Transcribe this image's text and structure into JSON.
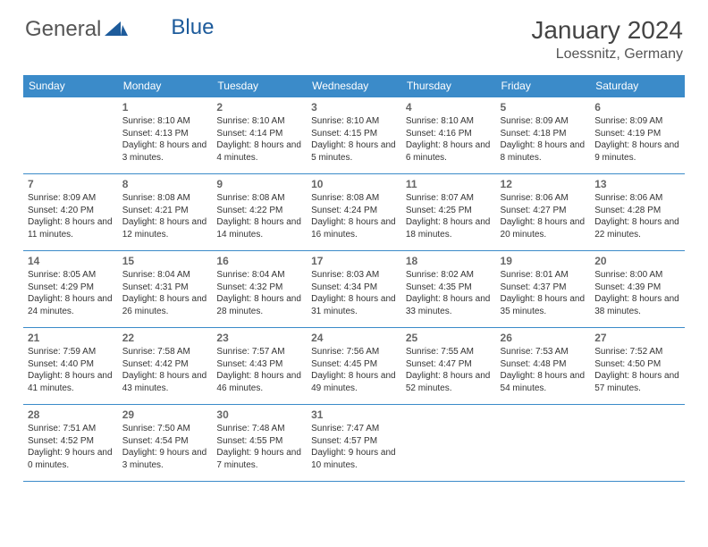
{
  "logo": {
    "text_a": "General",
    "text_b": "Blue"
  },
  "title": "January 2024",
  "location": "Loessnitz, Germany",
  "colors": {
    "header_bg": "#3b8bc9",
    "header_text": "#ffffff",
    "border": "#3b8bc9",
    "body_text": "#333333",
    "daynum": "#666666",
    "background": "#ffffff",
    "logo_gray": "#555555",
    "logo_blue": "#1d5b9b"
  },
  "typography": {
    "title_fontsize": 28,
    "location_fontsize": 16,
    "header_fontsize": 12,
    "daynum_fontsize": 12,
    "cell_fontsize": 10
  },
  "day_headers": [
    "Sunday",
    "Monday",
    "Tuesday",
    "Wednesday",
    "Thursday",
    "Friday",
    "Saturday"
  ],
  "weeks": [
    [
      null,
      {
        "n": "1",
        "sr": "8:10 AM",
        "ss": "4:13 PM",
        "dl": "8 hours and 3 minutes."
      },
      {
        "n": "2",
        "sr": "8:10 AM",
        "ss": "4:14 PM",
        "dl": "8 hours and 4 minutes."
      },
      {
        "n": "3",
        "sr": "8:10 AM",
        "ss": "4:15 PM",
        "dl": "8 hours and 5 minutes."
      },
      {
        "n": "4",
        "sr": "8:10 AM",
        "ss": "4:16 PM",
        "dl": "8 hours and 6 minutes."
      },
      {
        "n": "5",
        "sr": "8:09 AM",
        "ss": "4:18 PM",
        "dl": "8 hours and 8 minutes."
      },
      {
        "n": "6",
        "sr": "8:09 AM",
        "ss": "4:19 PM",
        "dl": "8 hours and 9 minutes."
      }
    ],
    [
      {
        "n": "7",
        "sr": "8:09 AM",
        "ss": "4:20 PM",
        "dl": "8 hours and 11 minutes."
      },
      {
        "n": "8",
        "sr": "8:08 AM",
        "ss": "4:21 PM",
        "dl": "8 hours and 12 minutes."
      },
      {
        "n": "9",
        "sr": "8:08 AM",
        "ss": "4:22 PM",
        "dl": "8 hours and 14 minutes."
      },
      {
        "n": "10",
        "sr": "8:08 AM",
        "ss": "4:24 PM",
        "dl": "8 hours and 16 minutes."
      },
      {
        "n": "11",
        "sr": "8:07 AM",
        "ss": "4:25 PM",
        "dl": "8 hours and 18 minutes."
      },
      {
        "n": "12",
        "sr": "8:06 AM",
        "ss": "4:27 PM",
        "dl": "8 hours and 20 minutes."
      },
      {
        "n": "13",
        "sr": "8:06 AM",
        "ss": "4:28 PM",
        "dl": "8 hours and 22 minutes."
      }
    ],
    [
      {
        "n": "14",
        "sr": "8:05 AM",
        "ss": "4:29 PM",
        "dl": "8 hours and 24 minutes."
      },
      {
        "n": "15",
        "sr": "8:04 AM",
        "ss": "4:31 PM",
        "dl": "8 hours and 26 minutes."
      },
      {
        "n": "16",
        "sr": "8:04 AM",
        "ss": "4:32 PM",
        "dl": "8 hours and 28 minutes."
      },
      {
        "n": "17",
        "sr": "8:03 AM",
        "ss": "4:34 PM",
        "dl": "8 hours and 31 minutes."
      },
      {
        "n": "18",
        "sr": "8:02 AM",
        "ss": "4:35 PM",
        "dl": "8 hours and 33 minutes."
      },
      {
        "n": "19",
        "sr": "8:01 AM",
        "ss": "4:37 PM",
        "dl": "8 hours and 35 minutes."
      },
      {
        "n": "20",
        "sr": "8:00 AM",
        "ss": "4:39 PM",
        "dl": "8 hours and 38 minutes."
      }
    ],
    [
      {
        "n": "21",
        "sr": "7:59 AM",
        "ss": "4:40 PM",
        "dl": "8 hours and 41 minutes."
      },
      {
        "n": "22",
        "sr": "7:58 AM",
        "ss": "4:42 PM",
        "dl": "8 hours and 43 minutes."
      },
      {
        "n": "23",
        "sr": "7:57 AM",
        "ss": "4:43 PM",
        "dl": "8 hours and 46 minutes."
      },
      {
        "n": "24",
        "sr": "7:56 AM",
        "ss": "4:45 PM",
        "dl": "8 hours and 49 minutes."
      },
      {
        "n": "25",
        "sr": "7:55 AM",
        "ss": "4:47 PM",
        "dl": "8 hours and 52 minutes."
      },
      {
        "n": "26",
        "sr": "7:53 AM",
        "ss": "4:48 PM",
        "dl": "8 hours and 54 minutes."
      },
      {
        "n": "27",
        "sr": "7:52 AM",
        "ss": "4:50 PM",
        "dl": "8 hours and 57 minutes."
      }
    ],
    [
      {
        "n": "28",
        "sr": "7:51 AM",
        "ss": "4:52 PM",
        "dl": "9 hours and 0 minutes."
      },
      {
        "n": "29",
        "sr": "7:50 AM",
        "ss": "4:54 PM",
        "dl": "9 hours and 3 minutes."
      },
      {
        "n": "30",
        "sr": "7:48 AM",
        "ss": "4:55 PM",
        "dl": "9 hours and 7 minutes."
      },
      {
        "n": "31",
        "sr": "7:47 AM",
        "ss": "4:57 PM",
        "dl": "9 hours and 10 minutes."
      },
      null,
      null,
      null
    ]
  ],
  "labels": {
    "sunrise": "Sunrise:",
    "sunset": "Sunset:",
    "daylight": "Daylight:"
  }
}
